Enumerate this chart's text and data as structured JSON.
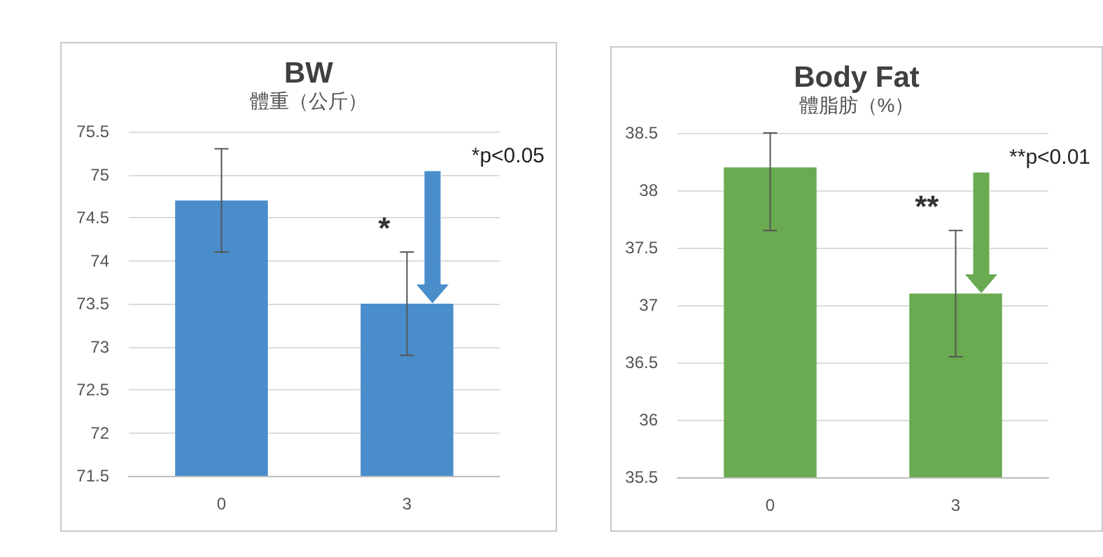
{
  "chart_data": [
    {
      "type": "bar",
      "title": "BW",
      "subtitle": "體重（公斤）",
      "categories": [
        "0",
        "3"
      ],
      "values": [
        74.7,
        73.5
      ],
      "errors": [
        0.6,
        0.6
      ],
      "color": "#4a8dcb",
      "ylim": [
        71.5,
        75.5
      ],
      "yticks": [
        71.5,
        72,
        72.5,
        73,
        73.5,
        74,
        74.5,
        75,
        75.5
      ],
      "grid": "y",
      "annotations": [
        "*p<0.05",
        "*"
      ]
    },
    {
      "type": "bar",
      "title": "Body Fat",
      "subtitle": "體脂肪（%）",
      "categories": [
        "0",
        "3"
      ],
      "values": [
        38.2,
        37.1
      ],
      "errors": [
        [
          37.65,
          38.5
        ],
        [
          36.55,
          37.65
        ]
      ],
      "color": "#6aaa50",
      "ylim": [
        35.5,
        38.5
      ],
      "yticks": [
        35.5,
        36,
        36.5,
        37,
        37.5,
        38,
        38.5
      ],
      "grid": "y",
      "annotations": [
        "**p<0.01",
        "**"
      ]
    }
  ]
}
